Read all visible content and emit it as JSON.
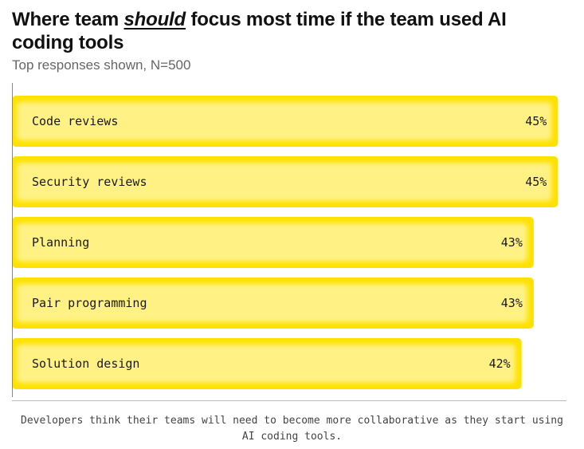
{
  "header": {
    "title_before": "Where team ",
    "title_emphasis": "should",
    "title_after": " focus most time if the team used AI coding tools",
    "subtitle": "Top responses shown, N=500"
  },
  "chart_data": {
    "type": "bar",
    "orientation": "horizontal",
    "title": "Where team should focus most time if the team used AI coding tools",
    "subtitle": "Top responses shown, N=500",
    "categories": [
      "Code reviews",
      "Security reviews",
      "Planning",
      "Pair programming",
      "Solution design"
    ],
    "values": [
      45,
      45,
      43,
      43,
      42
    ],
    "value_labels": [
      "45%",
      "45%",
      "43%",
      "43%",
      "42%"
    ],
    "unit": "%",
    "xlabel": "",
    "ylabel": "",
    "grid": false,
    "legend": "none",
    "colors": {
      "bar": "#ffe100",
      "bar_edge": "#f5d400",
      "bar_glow": "#fff7b0",
      "axis": "#888888"
    }
  },
  "footer": {
    "caption": "Developers think their teams will need to become more collaborative as they start using AI coding tools."
  }
}
